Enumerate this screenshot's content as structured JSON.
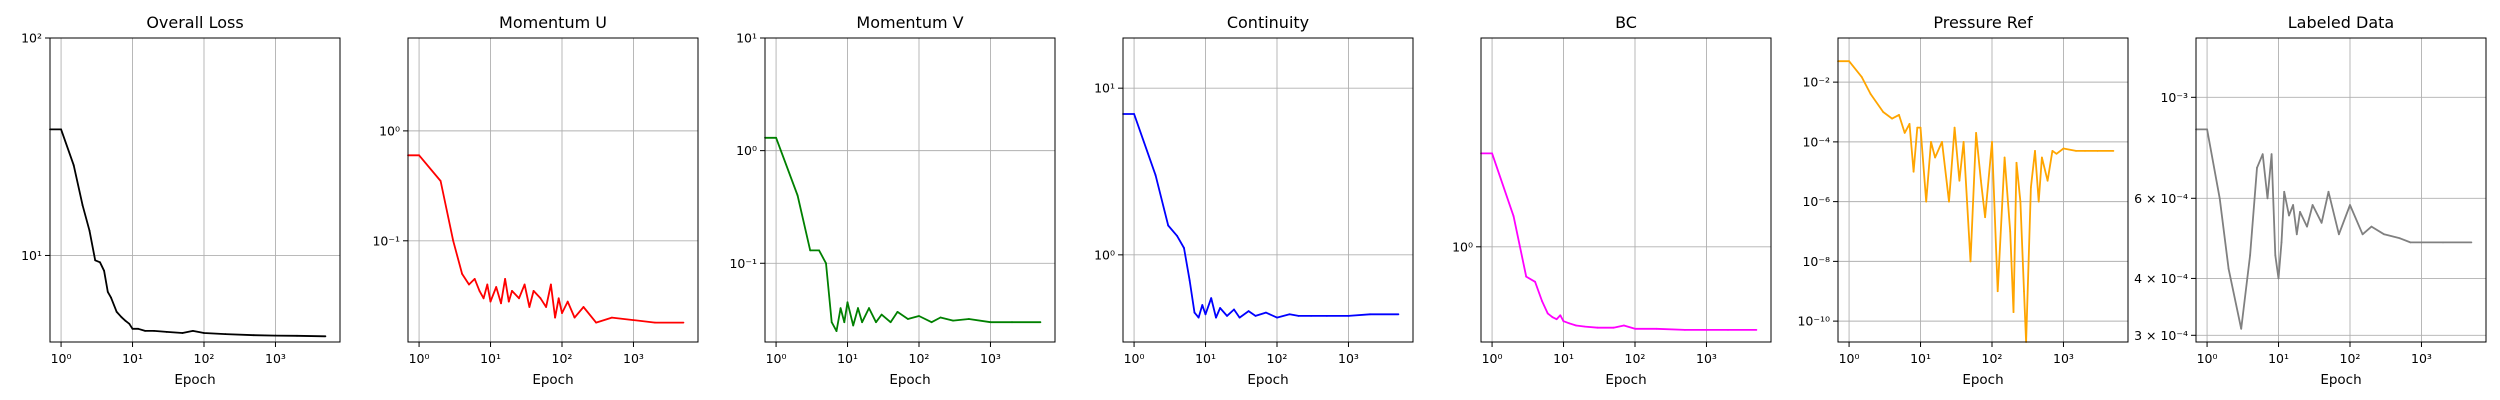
{
  "chart_data": [
    {
      "type": "line",
      "title": "Overall Loss",
      "xlabel": "Epoch",
      "ylabel": "",
      "xscale": "log",
      "yscale": "log",
      "xlim": [
        0.7,
        8000
      ],
      "ylim": [
        4,
        100
      ],
      "grid": true,
      "color": "#000000",
      "xticks": [
        {
          "v": 1,
          "label": "10⁰"
        },
        {
          "v": 10,
          "label": "10¹"
        },
        {
          "v": 100,
          "label": "10²"
        },
        {
          "v": 1000,
          "label": "10³"
        }
      ],
      "yticks": [
        {
          "v": 10,
          "label": "10¹"
        },
        {
          "v": 100,
          "label": "10²"
        }
      ],
      "series": [
        {
          "x": [
            0.7,
            1,
            1.5,
            2,
            2.5,
            3,
            3.5,
            4,
            4.5,
            5,
            6,
            7,
            8,
            9,
            10,
            12,
            15,
            20,
            30,
            50,
            70,
            100,
            200,
            500,
            1000,
            2000,
            5000
          ],
          "y": [
            38,
            38,
            26,
            17,
            13,
            9.5,
            9.3,
            8.5,
            6.8,
            6.4,
            5.5,
            5.2,
            5.0,
            4.85,
            4.6,
            4.6,
            4.5,
            4.5,
            4.45,
            4.4,
            4.5,
            4.4,
            4.35,
            4.3,
            4.28,
            4.27,
            4.25
          ]
        }
      ]
    },
    {
      "type": "line",
      "title": "Momentum U",
      "xlabel": "Epoch",
      "ylabel": "",
      "xscale": "log",
      "yscale": "log",
      "xlim": [
        0.7,
        8000
      ],
      "ylim": [
        0.012,
        7
      ],
      "grid": true,
      "color": "#ff0000",
      "xticks": [
        {
          "v": 1,
          "label": "10⁰"
        },
        {
          "v": 10,
          "label": "10¹"
        },
        {
          "v": 100,
          "label": "10²"
        },
        {
          "v": 1000,
          "label": "10³"
        }
      ],
      "yticks": [
        {
          "v": 0.1,
          "label": "10⁻¹"
        },
        {
          "v": 1,
          "label": "10⁰"
        }
      ],
      "series": [
        {
          "x": [
            0.7,
            1,
            2,
            3,
            4,
            5,
            6,
            7,
            8,
            9,
            10,
            12,
            14,
            16,
            18,
            20,
            25,
            30,
            35,
            40,
            50,
            60,
            70,
            80,
            90,
            100,
            120,
            150,
            200,
            300,
            500,
            1000,
            2000,
            5000
          ],
          "y": [
            0.6,
            0.6,
            0.35,
            0.1,
            0.05,
            0.04,
            0.045,
            0.035,
            0.03,
            0.04,
            0.028,
            0.038,
            0.027,
            0.045,
            0.028,
            0.035,
            0.03,
            0.04,
            0.025,
            0.035,
            0.03,
            0.025,
            0.04,
            0.02,
            0.03,
            0.022,
            0.028,
            0.02,
            0.025,
            0.018,
            0.02,
            0.019,
            0.018,
            0.018
          ]
        }
      ]
    },
    {
      "type": "line",
      "title": "Momentum V",
      "xlabel": "Epoch",
      "ylabel": "",
      "xscale": "log",
      "yscale": "log",
      "xlim": [
        0.7,
        8000
      ],
      "ylim": [
        0.02,
        10
      ],
      "grid": true,
      "color": "#008000",
      "xticks": [
        {
          "v": 1,
          "label": "10⁰"
        },
        {
          "v": 10,
          "label": "10¹"
        },
        {
          "v": 100,
          "label": "10²"
        },
        {
          "v": 1000,
          "label": "10³"
        }
      ],
      "yticks": [
        {
          "v": 0.1,
          "label": "10⁻¹"
        },
        {
          "v": 1,
          "label": "10⁰"
        },
        {
          "v": 10,
          "label": "10¹"
        }
      ],
      "series": [
        {
          "x": [
            0.7,
            1,
            2,
            3,
            4,
            5,
            6,
            7,
            8,
            9,
            10,
            12,
            14,
            16,
            20,
            25,
            30,
            40,
            50,
            70,
            100,
            150,
            200,
            300,
            500,
            1000,
            2000,
            5000
          ],
          "y": [
            1.3,
            1.3,
            0.4,
            0.13,
            0.13,
            0.1,
            0.03,
            0.025,
            0.04,
            0.03,
            0.045,
            0.028,
            0.04,
            0.03,
            0.04,
            0.03,
            0.035,
            0.03,
            0.037,
            0.032,
            0.034,
            0.03,
            0.033,
            0.031,
            0.032,
            0.03,
            0.03,
            0.03
          ]
        }
      ]
    },
    {
      "type": "line",
      "title": "Continuity",
      "xlabel": "Epoch",
      "ylabel": "",
      "xscale": "log",
      "yscale": "log",
      "xlim": [
        0.7,
        8000
      ],
      "ylim": [
        0.3,
        20
      ],
      "grid": true,
      "color": "#0000ff",
      "xticks": [
        {
          "v": 1,
          "label": "10⁰"
        },
        {
          "v": 10,
          "label": "10¹"
        },
        {
          "v": 100,
          "label": "10²"
        },
        {
          "v": 1000,
          "label": "10³"
        }
      ],
      "yticks": [
        {
          "v": 1,
          "label": "10⁰"
        },
        {
          "v": 10,
          "label": "10¹"
        }
      ],
      "series": [
        {
          "x": [
            0.7,
            1,
            2,
            3,
            4,
            5,
            6,
            7,
            8,
            9,
            10,
            12,
            14,
            16,
            20,
            25,
            30,
            40,
            50,
            70,
            100,
            150,
            200,
            300,
            500,
            1000,
            2000,
            5000
          ],
          "y": [
            7.0,
            7.0,
            3.0,
            1.5,
            1.3,
            1.1,
            0.7,
            0.45,
            0.42,
            0.5,
            0.44,
            0.55,
            0.42,
            0.48,
            0.43,
            0.47,
            0.42,
            0.46,
            0.43,
            0.45,
            0.42,
            0.44,
            0.43,
            0.43,
            0.43,
            0.43,
            0.44,
            0.44
          ]
        }
      ]
    },
    {
      "type": "line",
      "title": "BC",
      "xlabel": "Epoch",
      "ylabel": "",
      "xscale": "log",
      "yscale": "log",
      "xlim": [
        0.7,
        8000
      ],
      "ylim": [
        0.35,
        10
      ],
      "grid": true,
      "color": "#ff00ff",
      "xticks": [
        {
          "v": 1,
          "label": "10⁰"
        },
        {
          "v": 10,
          "label": "10¹"
        },
        {
          "v": 100,
          "label": "10²"
        },
        {
          "v": 1000,
          "label": "10³"
        }
      ],
      "yticks": [
        {
          "v": 1,
          "label": "10⁰"
        }
      ],
      "series": [
        {
          "x": [
            0.7,
            1,
            2,
            3,
            4,
            5,
            6,
            7,
            8,
            9,
            10,
            12,
            15,
            20,
            30,
            50,
            70,
            100,
            200,
            500,
            1000,
            2000,
            5000
          ],
          "y": [
            2.8,
            2.8,
            1.4,
            0.72,
            0.68,
            0.55,
            0.48,
            0.46,
            0.45,
            0.47,
            0.44,
            0.43,
            0.42,
            0.415,
            0.41,
            0.41,
            0.42,
            0.405,
            0.405,
            0.4,
            0.4,
            0.4,
            0.4
          ]
        }
      ]
    },
    {
      "type": "line",
      "title": "Pressure Ref",
      "xlabel": "Epoch",
      "ylabel": "",
      "xscale": "log",
      "yscale": "log",
      "xlim": [
        0.7,
        8000
      ],
      "ylim": [
        2e-11,
        0.3
      ],
      "grid": true,
      "color": "#ffa500",
      "xticks": [
        {
          "v": 1,
          "label": "10⁰"
        },
        {
          "v": 10,
          "label": "10¹"
        },
        {
          "v": 100,
          "label": "10²"
        },
        {
          "v": 1000,
          "label": "10³"
        }
      ],
      "yticks": [
        {
          "v": 1e-10,
          "label": "10⁻¹⁰"
        },
        {
          "v": 1e-08,
          "label": "10⁻⁸"
        },
        {
          "v": 1e-06,
          "label": "10⁻⁶"
        },
        {
          "v": 0.0001,
          "label": "10⁻⁴"
        },
        {
          "v": 0.01,
          "label": "10⁻²"
        }
      ],
      "series": [
        {
          "x": [
            0.7,
            1,
            1.5,
            2,
            3,
            4,
            5,
            6,
            7,
            8,
            9,
            10,
            12,
            14,
            16,
            20,
            25,
            30,
            35,
            40,
            50,
            60,
            70,
            80,
            100,
            120,
            150,
            180,
            200,
            220,
            250,
            280,
            300,
            350,
            400,
            450,
            500,
            600,
            700,
            800,
            1000,
            1500,
            2000,
            3000,
            5000
          ],
          "y": [
            0.05,
            0.05,
            0.015,
            0.004,
            0.001,
            0.0006,
            0.0008,
            0.0002,
            0.0004,
            1e-05,
            0.0003,
            0.0003,
            1e-06,
            0.0001,
            3e-05,
            0.0001,
            1e-06,
            0.0003,
            5e-06,
            0.0001,
            1e-08,
            0.0002,
            5e-06,
            3e-07,
            0.0001,
            1e-09,
            3e-05,
            1e-07,
            2e-10,
            2e-05,
            1e-06,
            1e-09,
            2e-11,
            3e-06,
            5e-05,
            1e-06,
            3e-05,
            5e-06,
            5e-05,
            4e-05,
            6e-05,
            5e-05,
            5e-05,
            5e-05,
            5e-05
          ]
        }
      ]
    },
    {
      "type": "line",
      "title": "Labeled Data",
      "xlabel": "Epoch",
      "ylabel": "",
      "xscale": "log",
      "yscale": "log",
      "xlim": [
        0.7,
        8000
      ],
      "ylim": [
        0.00029,
        0.00135
      ],
      "grid": true,
      "color": "#808080",
      "xticks": [
        {
          "v": 1,
          "label": "10⁰"
        },
        {
          "v": 10,
          "label": "10¹"
        },
        {
          "v": 100,
          "label": "10²"
        },
        {
          "v": 1000,
          "label": "10³"
        }
      ],
      "yticks": [
        {
          "v": 0.0003,
          "label": "3 × 10⁻⁴"
        },
        {
          "v": 0.0004,
          "label": "4 × 10⁻⁴"
        },
        {
          "v": 0.0006,
          "label": "6 × 10⁻⁴"
        },
        {
          "v": 0.001,
          "label": "10⁻³"
        }
      ],
      "series": [
        {
          "x": [
            0.7,
            1,
            1.5,
            2,
            3,
            4,
            5,
            6,
            7,
            8,
            9,
            10,
            11,
            12,
            14,
            16,
            18,
            20,
            25,
            30,
            40,
            50,
            70,
            100,
            150,
            200,
            300,
            500,
            700,
            1000,
            2000,
            5000
          ],
          "y": [
            0.00085,
            0.00085,
            0.0006,
            0.00042,
            0.00031,
            0.00045,
            0.0007,
            0.00075,
            0.0006,
            0.00075,
            0.00045,
            0.0004,
            0.00048,
            0.00062,
            0.00055,
            0.00058,
            0.0005,
            0.00056,
            0.00052,
            0.00058,
            0.00053,
            0.00062,
            0.0005,
            0.00058,
            0.0005,
            0.00052,
            0.0005,
            0.00049,
            0.00048,
            0.00048,
            0.00048,
            0.00048
          ]
        }
      ]
    }
  ]
}
